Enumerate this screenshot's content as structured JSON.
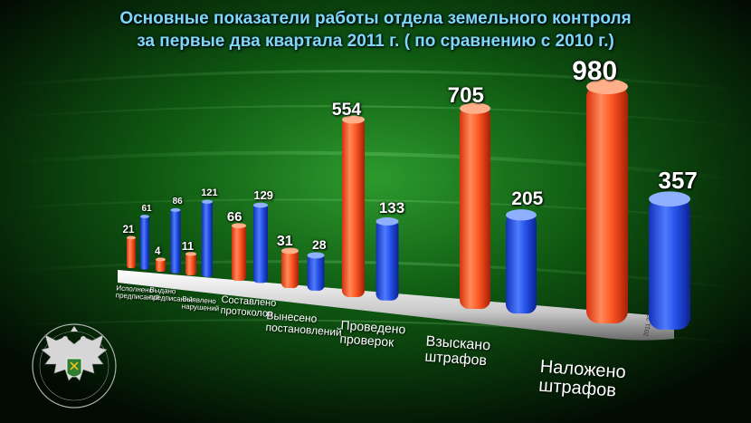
{
  "title": {
    "line1": "Основные показатели работы отдела земельного контроля",
    "line2": "за первые два квартала 2011 г. ( по сравнению с 2010 г.)"
  },
  "colors": {
    "series_2011": "#ff4a1a",
    "series_2010": "#1f4fe0",
    "title": "#7fd8f5",
    "background": "#0a3d0a"
  },
  "emblem": {
    "icon": "double-headed-eagle-emblem"
  },
  "chart_data": {
    "type": "bar",
    "categories": [
      "Исполнено предписаний",
      "Выдано предписаний",
      "Выявлено нарушений",
      "Составлено протоколов",
      "Вынесено постановлений",
      "Проведено проверок",
      "Взыскано штрафов",
      "Наложено штрафов"
    ],
    "category_lines": [
      [
        "Исполнено",
        "предписаний"
      ],
      [
        "Выдано",
        "предписаний"
      ],
      [
        "Выявлено",
        "нарушений"
      ],
      [
        "Составлено",
        "протоколов"
      ],
      [
        "Вынесено",
        "постановлений"
      ],
      [
        "Проведено",
        "проверок"
      ],
      [
        "Взыскано",
        "штрафов"
      ],
      [
        "Наложено",
        "штрафов"
      ]
    ],
    "series": [
      {
        "name": "2011",
        "values": [
          21,
          4,
          11,
          66,
          31,
          554,
          705,
          980
        ]
      },
      {
        "name": "2010",
        "values": [
          61,
          86,
          121,
          129,
          28,
          133,
          205,
          357
        ]
      }
    ],
    "ylim": [
      0,
      1000
    ],
    "base_labels": [
      "2011",
      "2010"
    ]
  }
}
